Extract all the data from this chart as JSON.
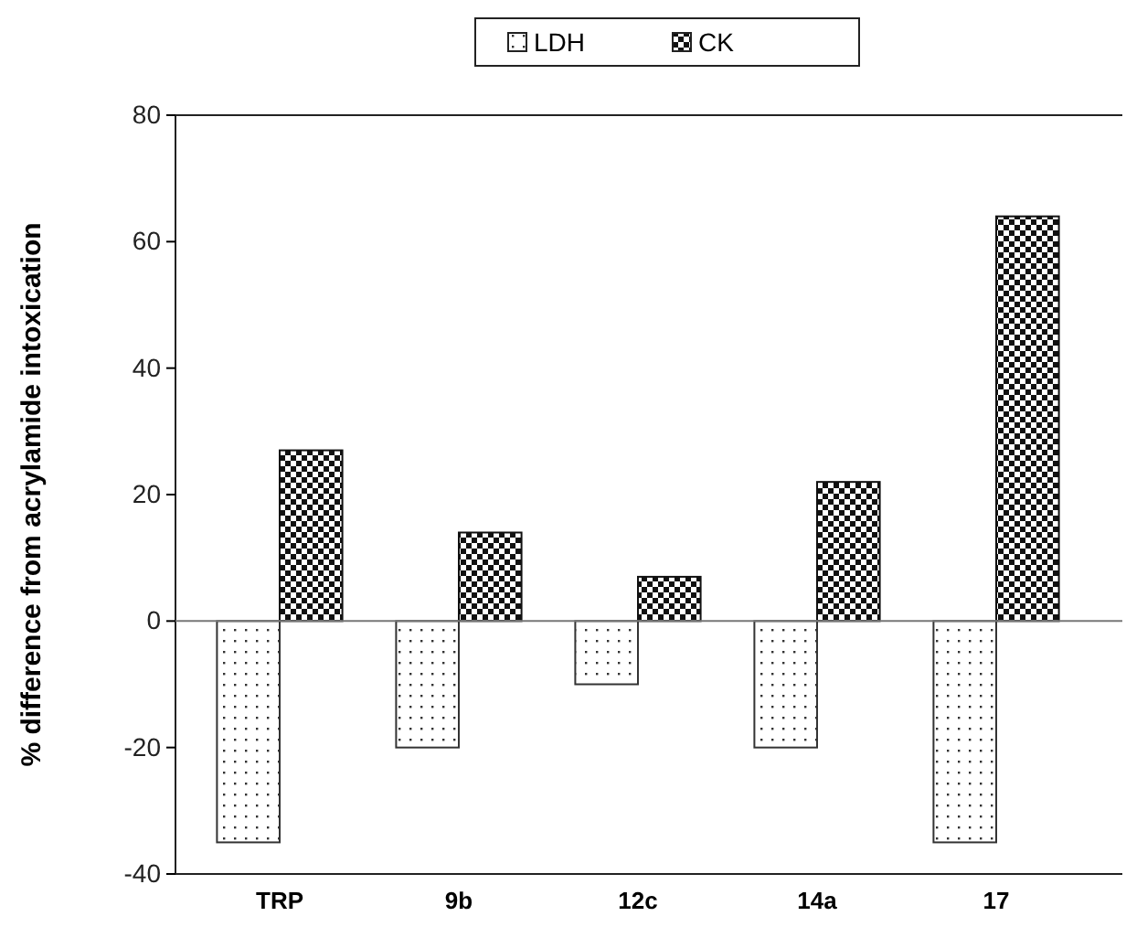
{
  "chart_data": {
    "type": "bar",
    "ylabel": "% difference from acrylamide intoxication",
    "categories": [
      "TRP",
      "9b",
      "12c",
      "14a",
      "17"
    ],
    "series": [
      {
        "name": "LDH",
        "color": "#333333",
        "values": [
          -35,
          -20,
          -10,
          -20,
          -35
        ]
      },
      {
        "name": "CK",
        "color": "#111111",
        "values": [
          27,
          14,
          7,
          22,
          64
        ]
      }
    ],
    "ylim": [
      -40,
      80
    ],
    "yticks": [
      -40,
      -20,
      0,
      20,
      40,
      60,
      80
    ],
    "legend": "top"
  }
}
